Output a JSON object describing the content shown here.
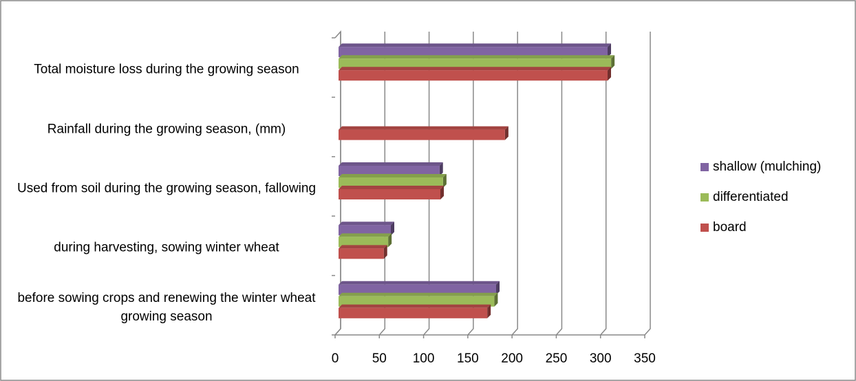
{
  "chart_data": {
    "type": "bar3d_horizontal",
    "categories": [
      "Total moisture loss during the growing season",
      "Rainfall during the growing season, (mm)",
      "Used from soil during the growing season, fallowing",
      "during harvesting, sowing winter wheat",
      "before sowing crops and renewing the winter wheat growing season"
    ],
    "series": [
      {
        "name": "shallow (mulching)",
        "color": "#8064a2",
        "values": [
          308,
          null,
          118,
          63,
          182
        ]
      },
      {
        "name": "differentiated",
        "color": "#9bbb59",
        "values": [
          312,
          null,
          122,
          60,
          180
        ]
      },
      {
        "name": "board",
        "color": "#c0504d",
        "values": [
          308,
          192,
          119,
          55,
          172
        ]
      }
    ],
    "xlim": [
      0,
      350
    ],
    "xticks": [
      0,
      50,
      100,
      150,
      200,
      250,
      300,
      350
    ],
    "grid": true,
    "legend": "right"
  }
}
